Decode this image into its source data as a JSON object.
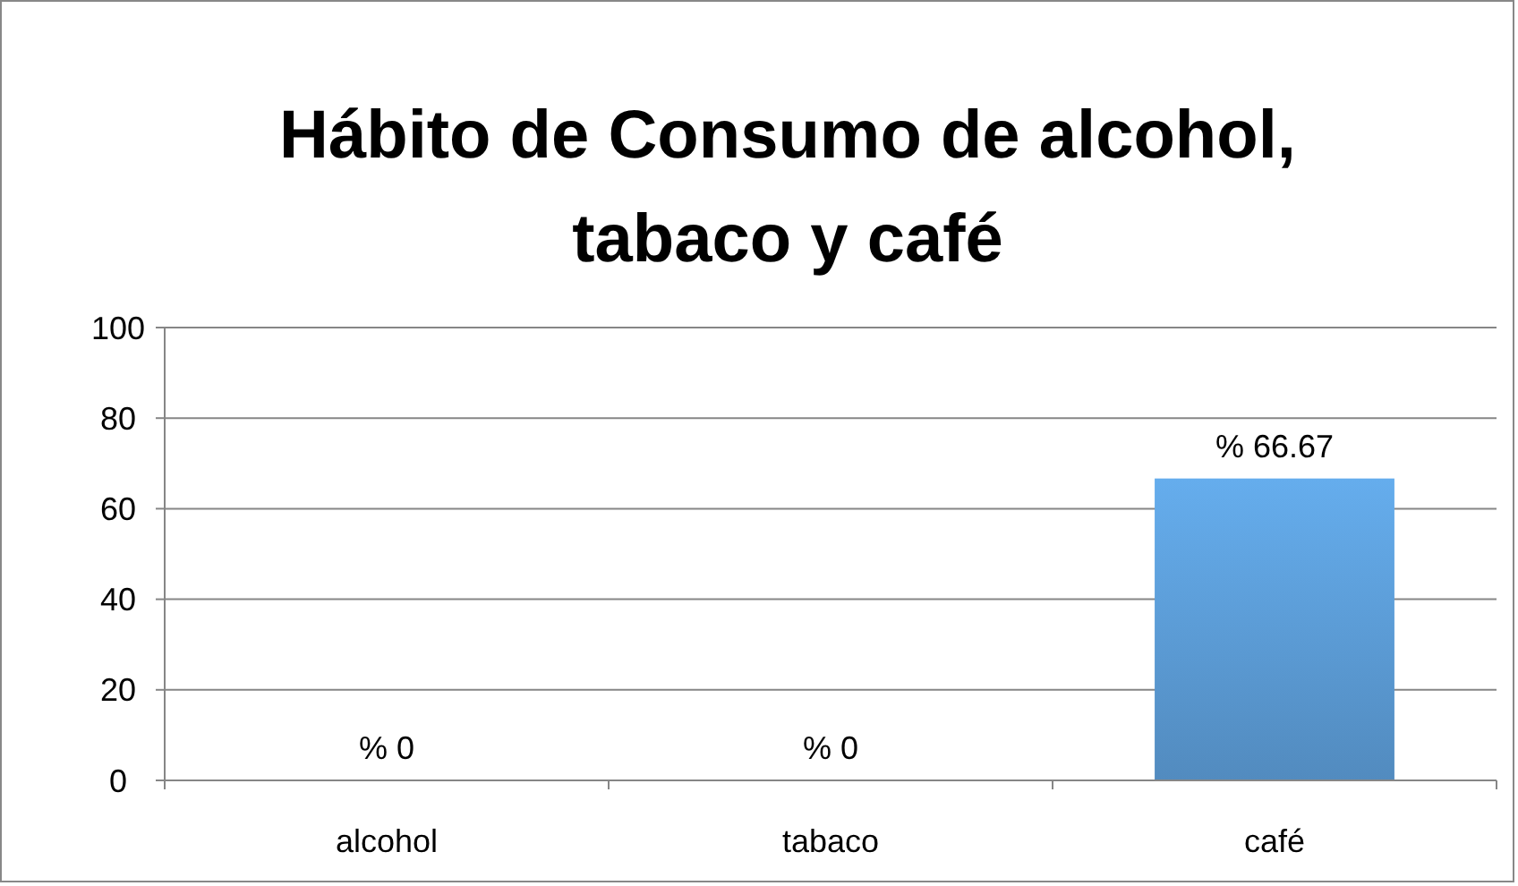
{
  "chart_data": {
    "type": "bar",
    "title": "Hábito de Consumo de alcohol, tabaco y café",
    "categories": [
      "alcohol",
      "tabaco",
      "café"
    ],
    "values": [
      0,
      0,
      66.67
    ],
    "value_labels": [
      "% 0",
      "% 0",
      "% 66.67"
    ],
    "color": "#5b9bd5",
    "ylim": [
      0,
      100
    ],
    "yticks": [
      0,
      20,
      40,
      60,
      80,
      100
    ],
    "grid": "y"
  }
}
